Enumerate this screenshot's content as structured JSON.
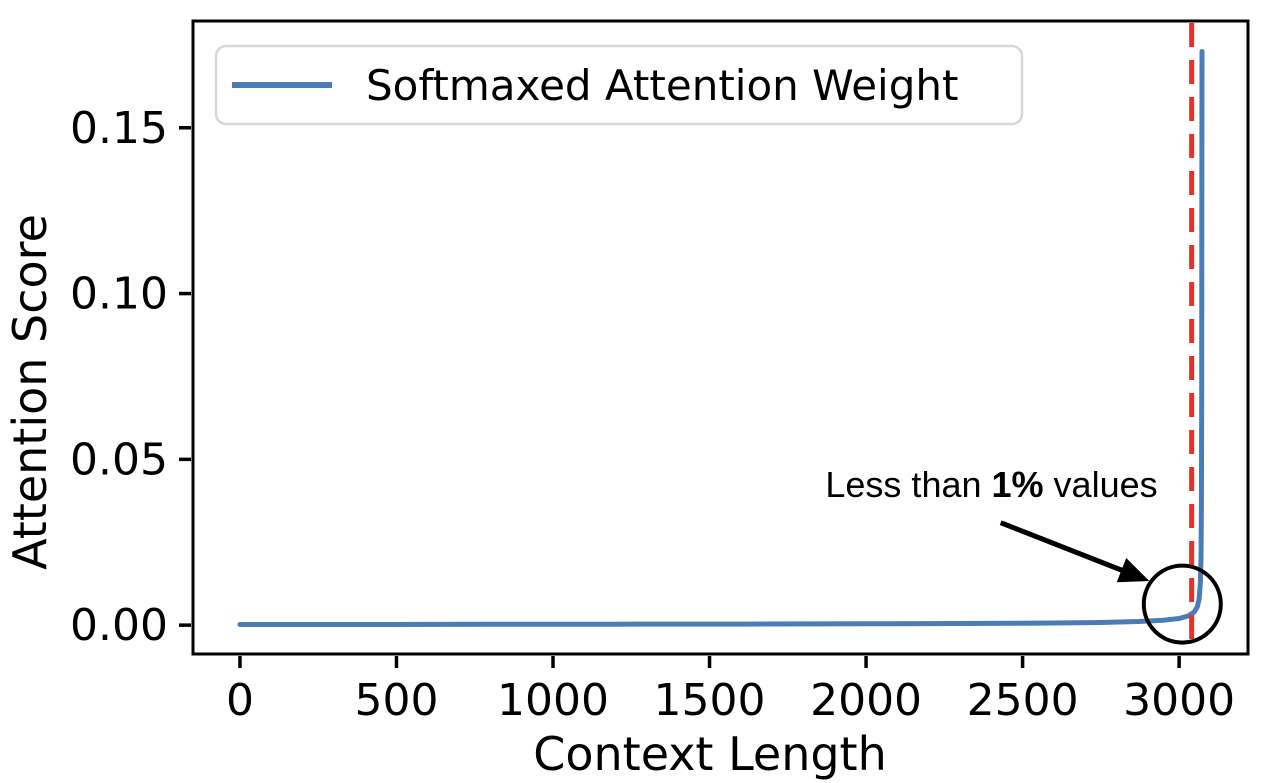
{
  "chart_data": {
    "type": "line",
    "title": "",
    "xlabel": "Context Length",
    "ylabel": "Attention Score",
    "xlim": [
      -150,
      3220
    ],
    "ylim": [
      -0.0087,
      0.1822
    ],
    "grid": false,
    "x_tick_values": [
      0,
      500,
      1000,
      1500,
      2000,
      2500,
      3000
    ],
    "x_tick_labels": [
      "0",
      "500",
      "1000",
      "1500",
      "2000",
      "2500",
      "3000"
    ],
    "y_tick_values": [
      0.0,
      0.05,
      0.1,
      0.15
    ],
    "y_tick_labels": [
      "0.00",
      "0.05",
      "0.10",
      "0.15"
    ],
    "series": [
      {
        "name": "Softmaxed Attention Weight",
        "color": "#4a7db7",
        "line_width": 5,
        "points": [
          [
            0,
            0.0002
          ],
          [
            400,
            0.0002
          ],
          [
            800,
            0.00025
          ],
          [
            1200,
            0.0003
          ],
          [
            1600,
            0.00032
          ],
          [
            2000,
            0.0004
          ],
          [
            2300,
            0.0005
          ],
          [
            2600,
            0.00065
          ],
          [
            2750,
            0.0008
          ],
          [
            2870,
            0.0011
          ],
          [
            2950,
            0.0015
          ],
          [
            3000,
            0.002
          ],
          [
            3030,
            0.0028
          ],
          [
            3048,
            0.004
          ],
          [
            3058,
            0.0055
          ],
          [
            3064,
            0.008
          ],
          [
            3068,
            0.013
          ],
          [
            3070,
            0.02
          ],
          [
            3071,
            0.035
          ],
          [
            3072,
            0.07
          ],
          [
            3072.5,
            0.12
          ],
          [
            3073,
            0.173
          ]
        ]
      }
    ],
    "vline": {
      "x": 3040,
      "color": "#e53228",
      "style": "dashed"
    },
    "legend": {
      "position": "upper left",
      "entries": [
        {
          "label": "Softmaxed Attention Weight",
          "color": "#4a7db7"
        }
      ]
    },
    "annotation": {
      "text": "Less than 1% values",
      "prefix": "Less than ",
      "bold": "1%",
      "suffix": " values",
      "text_xy": [
        1870,
        0.0387
      ],
      "arrow": {
        "from": [
          2430,
          0.0309
        ],
        "to": [
          2905,
          0.0133
        ]
      },
      "circle": {
        "center": [
          3010,
          0.00635
        ],
        "rx": 123,
        "ry": 0.0116
      }
    },
    "colors": {
      "line": "#4a7db7",
      "vline": "#e53228",
      "spine": "#000000",
      "legend_border": "#d8d8d8",
      "annotation": "#000000"
    }
  }
}
